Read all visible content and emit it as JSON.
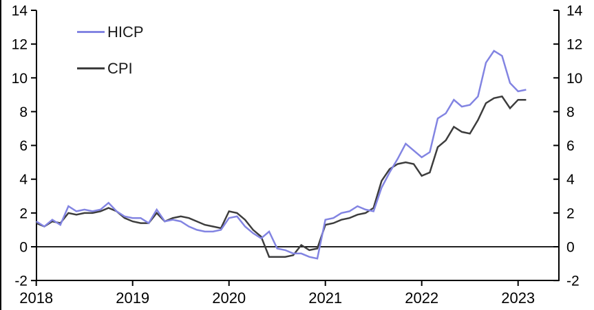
{
  "chart_data": {
    "type": "line",
    "title": "",
    "x_unit": "month",
    "x_start_label": "2018",
    "x_tick_labels": [
      "2018",
      "2019",
      "2020",
      "2021",
      "2022",
      "2023"
    ],
    "y_ticks": [
      -2,
      0,
      2,
      4,
      6,
      8,
      10,
      12,
      14
    ],
    "ylim": [
      -2,
      14
    ],
    "grid": false,
    "zero_line": true,
    "legend_position": "top-left",
    "axis_color": "#000000",
    "months_per_year_tick": 12,
    "series": [
      {
        "name": "HICP",
        "color": "#8284e2",
        "values": [
          1.5,
          1.2,
          1.6,
          1.3,
          2.4,
          2.1,
          2.2,
          2.1,
          2.2,
          2.6,
          2.1,
          1.8,
          1.7,
          1.7,
          1.4,
          2.2,
          1.5,
          1.6,
          1.5,
          1.2,
          1.0,
          0.9,
          0.9,
          1.0,
          1.7,
          1.8,
          1.2,
          0.8,
          0.5,
          0.9,
          -0.1,
          -0.2,
          -0.4,
          -0.4,
          -0.6,
          -0.7,
          1.6,
          1.7,
          2.0,
          2.1,
          2.4,
          2.2,
          2.1,
          3.5,
          4.4,
          5.2,
          6.1,
          5.7,
          5.3,
          5.6,
          7.6,
          7.9,
          8.7,
          8.3,
          8.4,
          8.9,
          10.9,
          11.6,
          11.3,
          9.7,
          9.2,
          9.3
        ]
      },
      {
        "name": "CPI",
        "color": "#3d3d3d",
        "values": [
          1.4,
          1.2,
          1.5,
          1.4,
          2.0,
          1.9,
          2.0,
          2.0,
          2.1,
          2.3,
          2.1,
          1.7,
          1.5,
          1.4,
          1.4,
          2.0,
          1.5,
          1.7,
          1.8,
          1.7,
          1.5,
          1.3,
          1.2,
          1.1,
          2.1,
          2.0,
          1.6,
          1.0,
          0.6,
          -0.6,
          -0.6,
          -0.6,
          -0.5,
          0.1,
          -0.2,
          -0.1,
          1.3,
          1.4,
          1.6,
          1.7,
          1.9,
          2.0,
          2.3,
          3.9,
          4.6,
          4.9,
          5.0,
          4.9,
          4.2,
          4.4,
          5.9,
          6.3,
          7.1,
          6.8,
          6.7,
          7.5,
          8.5,
          8.8,
          8.9,
          8.2,
          8.7,
          8.7
        ]
      }
    ]
  },
  "legend": {
    "items": [
      {
        "label": "HICP",
        "color": "#8284e2"
      },
      {
        "label": "CPI",
        "color": "#3d3d3d"
      }
    ]
  }
}
